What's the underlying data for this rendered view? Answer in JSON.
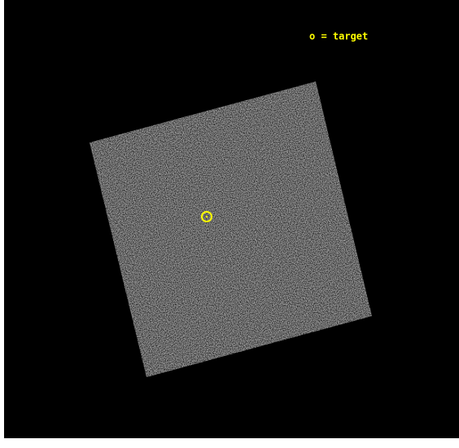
{
  "legend": "o = target"
}
